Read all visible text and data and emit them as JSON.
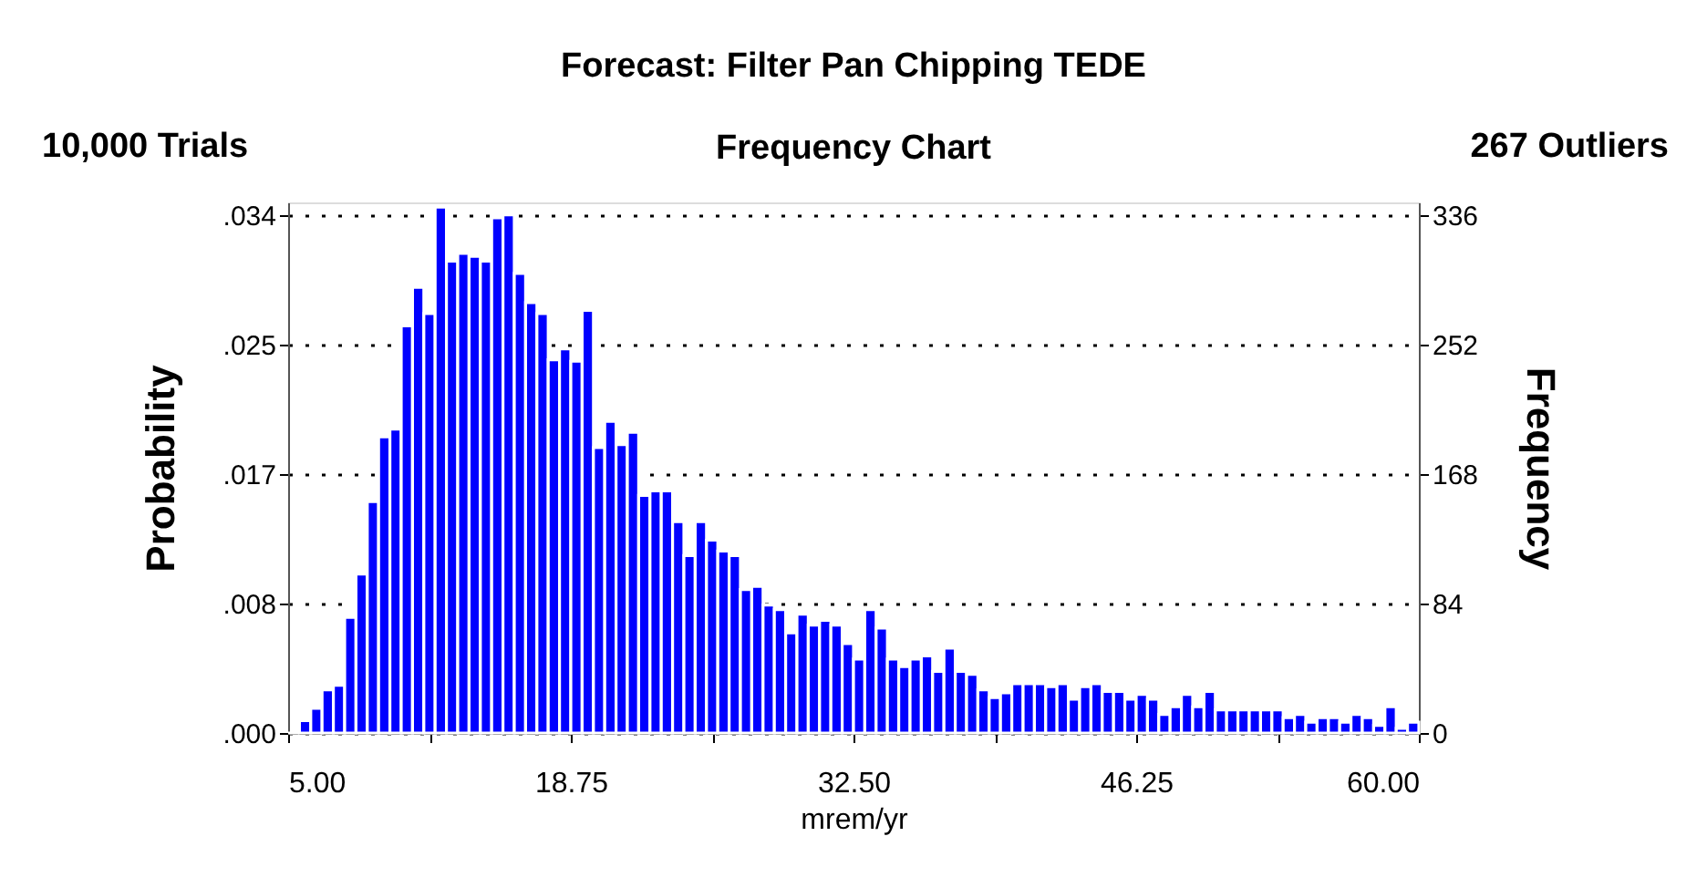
{
  "chart_data": {
    "type": "histogram",
    "title": "Forecast: Filter Pan Chipping TEDE",
    "subtitle": "Frequency Chart",
    "annotations": [
      "10,000 Trials",
      "267 Outliers"
    ],
    "xlabel": "mrem/yr",
    "ylabel": "Probability",
    "y2label": "Frequency",
    "color": "#0000ff",
    "bins": [
      5,
      5.55,
      6.1,
      6.65,
      7.2,
      7.75,
      8.3,
      8.85,
      9.4,
      9.95,
      10.5,
      11.05,
      11.6,
      12.15,
      12.7,
      13.25,
      13.8,
      14.35,
      14.9,
      15.45,
      16,
      16.55,
      17.1,
      17.65,
      18.2,
      18.75,
      19.3,
      19.85,
      20.4,
      20.95,
      21.5,
      22.05,
      22.6,
      23.15,
      23.7,
      24.25,
      24.8,
      25.35,
      25.9,
      26.45,
      27,
      27.55,
      28.1,
      28.65,
      29.2,
      29.75,
      30.3,
      30.85,
      31.4,
      31.95,
      32.5,
      33.05,
      33.6,
      34.15,
      34.7,
      35.25,
      35.8,
      36.35,
      36.9,
      37.45,
      38,
      38.55,
      39.1,
      39.65,
      40.2,
      40.75,
      41.3,
      41.85,
      42.4,
      42.95,
      43.5,
      44.05,
      44.6,
      45.15,
      45.7,
      46.25,
      46.8,
      47.35,
      47.9,
      48.45,
      49,
      49.55,
      50.1,
      50.65,
      51.2,
      51.75,
      52.3,
      52.85,
      53.4,
      53.95,
      54.5,
      55.05,
      55.6,
      56.15,
      56.7,
      57.25,
      57.8,
      58.35,
      58.9,
      59.45,
      60
    ],
    "values": [
      0,
      0.0008,
      0.0016,
      0.0028,
      0.0031,
      0.0075,
      0.0103,
      0.015,
      0.0192,
      0.0197,
      0.0264,
      0.0289,
      0.0272,
      0.0341,
      0.0306,
      0.0311,
      0.0309,
      0.0306,
      0.0334,
      0.0336,
      0.0298,
      0.0279,
      0.0272,
      0.0242,
      0.0249,
      0.0241,
      0.0274,
      0.0185,
      0.0202,
      0.0187,
      0.0195,
      0.0154,
      0.0157,
      0.0157,
      0.0137,
      0.0115,
      0.0137,
      0.0125,
      0.0118,
      0.0115,
      0.0093,
      0.0095,
      0.0083,
      0.008,
      0.0065,
      0.0077,
      0.007,
      0.0073,
      0.007,
      0.0058,
      0.0048,
      0.008,
      0.0068,
      0.0048,
      0.0043,
      0.0048,
      0.005,
      0.004,
      0.0055,
      0.004,
      0.0038,
      0.0028,
      0.0023,
      0.0026,
      0.0032,
      0.0032,
      0.0032,
      0.003,
      0.0032,
      0.0022,
      0.003,
      0.0032,
      0.0027,
      0.0027,
      0.0022,
      0.0025,
      0.0022,
      0.0012,
      0.0017,
      0.0025,
      0.0017,
      0.0027,
      0.0015,
      0.0015,
      0.0015,
      0.0015,
      0.0015,
      0.0015,
      0.001,
      0.0012,
      0.0007,
      0.001,
      0.001,
      0.0007,
      0.0012,
      0.001,
      0.0005,
      0.0017,
      0.0003,
      0.0007
    ],
    "xlim": [
      5,
      60
    ],
    "xticks": [
      {
        "value": 5,
        "label": "5.00"
      },
      {
        "value": 11.875,
        "label": null
      },
      {
        "value": 18.75,
        "label": "18.75"
      },
      {
        "value": 25.625,
        "label": null
      },
      {
        "value": 32.5,
        "label": "32.50"
      },
      {
        "value": 39.375,
        "label": null
      },
      {
        "value": 46.25,
        "label": "46.25"
      },
      {
        "value": 53.125,
        "label": null
      },
      {
        "value": 60,
        "label": "60.00"
      }
    ],
    "ylim": [
      0,
      0.0344
    ],
    "yticks": [
      {
        "value": 0,
        "label": ".000"
      },
      {
        "value": 0.0084,
        "label": ".008"
      },
      {
        "value": 0.0168,
        "label": ".017"
      },
      {
        "value": 0.0252,
        "label": ".025"
      },
      {
        "value": 0.0336,
        "label": ".034"
      }
    ],
    "y2lim": [
      0,
      344
    ],
    "y2ticks": [
      0,
      84,
      168,
      252,
      336
    ],
    "grid": "y"
  }
}
